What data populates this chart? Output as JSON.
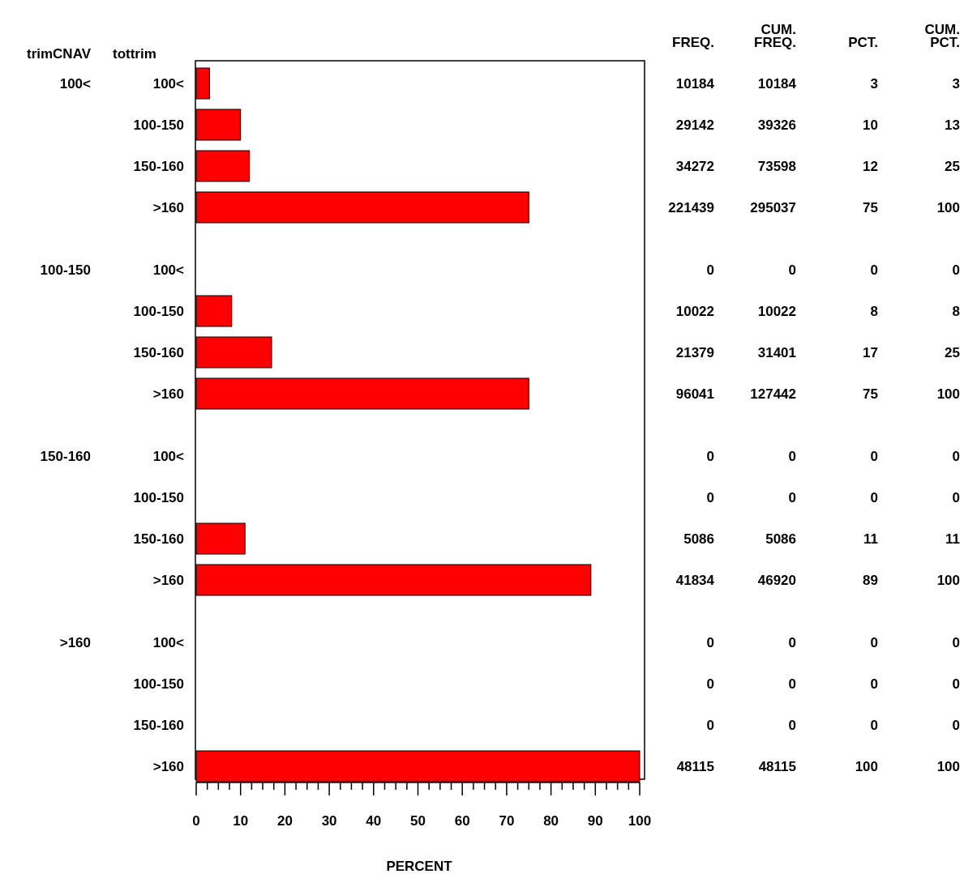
{
  "chart_data": [
    {
      "type": "bar",
      "orientation": "horizontal",
      "xlabel": "PERCENT",
      "ylabel": "tottrim",
      "categories": [
        "100<",
        "100-150",
        "150-160",
        ">160",
        "100<",
        "100-150",
        "150-160",
        ">160",
        "100<",
        "100-150",
        "150-160",
        ">160",
        "100<",
        "100-150",
        "150-160",
        ">160"
      ],
      "values": [
        3,
        10,
        12,
        75,
        0,
        8,
        17,
        75,
        0,
        0,
        11,
        89,
        0,
        0,
        0,
        100
      ],
      "color": "#ff0000",
      "annotations": [
        "trimCNAV",
        "100<",
        "100-150",
        "150-160",
        ">160"
      ],
      "xlim": [
        0,
        100
      ],
      "xticks": [
        0,
        {
          "value": 2.5,
          "label": null
        },
        {
          "value": 5,
          "label": null
        },
        {
          "value": 7.5,
          "label": null
        },
        10,
        {
          "value": 12.5,
          "label": null
        },
        {
          "value": 15,
          "label": null
        },
        {
          "value": 17.5,
          "label": null
        },
        20,
        {
          "value": 22.5,
          "label": null
        },
        {
          "value": 25,
          "label": null
        },
        {
          "value": 27.5,
          "label": null
        },
        30,
        {
          "value": 32.5,
          "label": null
        },
        {
          "value": 35,
          "label": null
        },
        {
          "value": 37.5,
          "label": null
        },
        40,
        {
          "value": 42.5,
          "label": null
        },
        {
          "value": 45,
          "label": null
        },
        {
          "value": 47.5,
          "label": null
        },
        50,
        {
          "value": 52.5,
          "label": null
        },
        {
          "value": 55,
          "label": null
        },
        {
          "value": 57.5,
          "label": null
        },
        60,
        {
          "value": 62.5,
          "label": null
        },
        {
          "value": 65,
          "label": null
        },
        {
          "value": 67.5,
          "label": null
        },
        70,
        {
          "value": 72.5,
          "label": null
        },
        {
          "value": 75,
          "label": null
        },
        {
          "value": 77.5,
          "label": null
        },
        80,
        {
          "value": 82.5,
          "label": null
        },
        {
          "value": 85,
          "label": null
        },
        {
          "value": 87.5,
          "label": null
        },
        90,
        {
          "value": 92.5,
          "label": null
        },
        {
          "value": 95,
          "label": null
        },
        {
          "value": 97.5,
          "label": null
        },
        100
      ]
    },
    {
      "type": "heatmap",
      "color": "#ffffff",
      "data_labels": true,
      "tick_labels": "x",
      "categories": [
        "FREQ.",
        "CUM. FREQ.",
        "PCT.",
        "CUM. PCT."
      ],
      "y_categories": [
        null,
        null,
        null,
        null,
        null,
        null,
        null,
        null,
        null,
        null,
        null,
        null,
        null,
        null,
        null,
        null
      ],
      "cells": [
        [
          10184,
          10184,
          3,
          3
        ],
        [
          29142,
          39326,
          10,
          13
        ],
        [
          34272,
          73598,
          12,
          25
        ],
        [
          221439,
          295037,
          75,
          100
        ],
        [
          0,
          0,
          0,
          0
        ],
        [
          10022,
          10022,
          8,
          8
        ],
        [
          21379,
          31401,
          17,
          25
        ],
        [
          96041,
          127442,
          75,
          100
        ],
        [
          0,
          0,
          0,
          0
        ],
        [
          0,
          0,
          0,
          0
        ],
        [
          5086,
          5086,
          11,
          11
        ],
        [
          41834,
          46920,
          89,
          100
        ],
        [
          0,
          0,
          0,
          0
        ],
        [
          0,
          0,
          0,
          0
        ],
        [
          0,
          0,
          0,
          0
        ],
        [
          48115,
          48115,
          100,
          100
        ]
      ]
    }
  ]
}
